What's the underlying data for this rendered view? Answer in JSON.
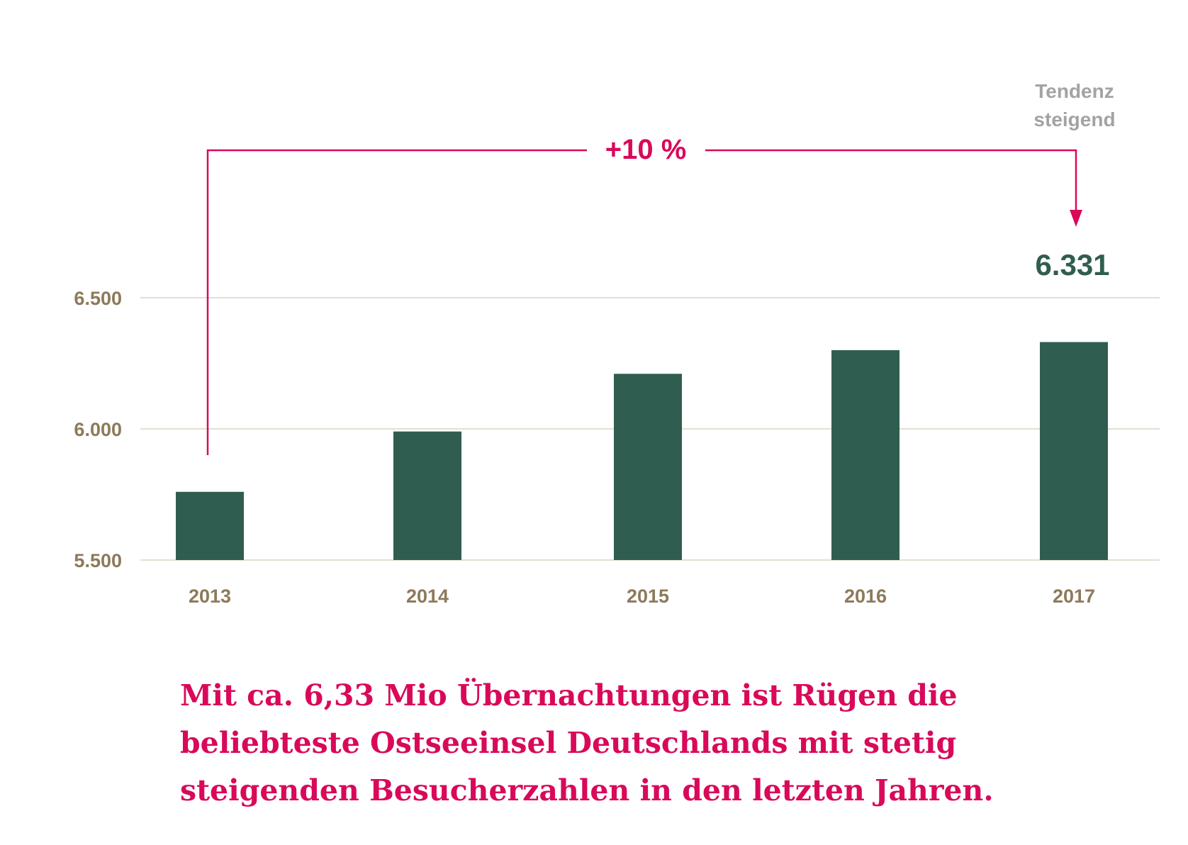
{
  "chart_data": {
    "type": "bar",
    "categories": [
      "2013",
      "2014",
      "2015",
      "2016",
      "2017"
    ],
    "values": [
      5760,
      5990,
      6210,
      6300,
      6331
    ],
    "ylim": [
      5500,
      6800
    ],
    "y_ticks": [
      {
        "value": 5500,
        "label": "5.500"
      },
      {
        "value": 6000,
        "label": "6.000"
      },
      {
        "value": 6500,
        "label": "6.500"
      }
    ],
    "grid": true,
    "bar_color": "#2f5e50",
    "highlight_value_label": "6.331",
    "annotations": {
      "growth": "+10 %",
      "growth_color": "#d9095a",
      "trend_line1": "Tendenz",
      "trend_line2": "steigend"
    }
  },
  "caption": {
    "line1": "Mit ca. 6,33 Mio Übernachtungen ist Rügen die",
    "line2": "beliebteste Ostseeinsel Deutschlands mit stetig",
    "line3": "steigenden Besucherzahlen in den letzten Jahren."
  }
}
